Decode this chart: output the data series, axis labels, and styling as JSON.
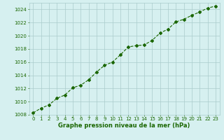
{
  "x": [
    0,
    1,
    2,
    3,
    4,
    5,
    6,
    7,
    8,
    9,
    10,
    11,
    12,
    13,
    14,
    15,
    16,
    17,
    18,
    19,
    20,
    21,
    22,
    23
  ],
  "y": [
    1008.3,
    1009.0,
    1009.5,
    1010.5,
    1011.0,
    1012.1,
    1012.5,
    1013.3,
    1014.5,
    1015.5,
    1016.0,
    1017.1,
    1018.3,
    1018.5,
    1018.6,
    1019.3,
    1020.4,
    1021.0,
    1022.1,
    1022.5,
    1023.1,
    1023.6,
    1024.2,
    1024.5
  ],
  "line_color": "#1a6600",
  "marker": "D",
  "marker_size": 2,
  "bg_color": "#d6f0f0",
  "grid_color": "#aacccc",
  "xlabel": "Graphe pression niveau de la mer (hPa)",
  "xlabel_fontsize": 6,
  "tick_fontsize": 5,
  "ylim": [
    1008,
    1025
  ],
  "yticks": [
    1008,
    1010,
    1012,
    1014,
    1016,
    1018,
    1020,
    1022,
    1024
  ],
  "xticks": [
    0,
    1,
    2,
    3,
    4,
    5,
    6,
    7,
    8,
    9,
    10,
    11,
    12,
    13,
    14,
    15,
    16,
    17,
    18,
    19,
    20,
    21,
    22,
    23
  ],
  "line_width": 0.8
}
